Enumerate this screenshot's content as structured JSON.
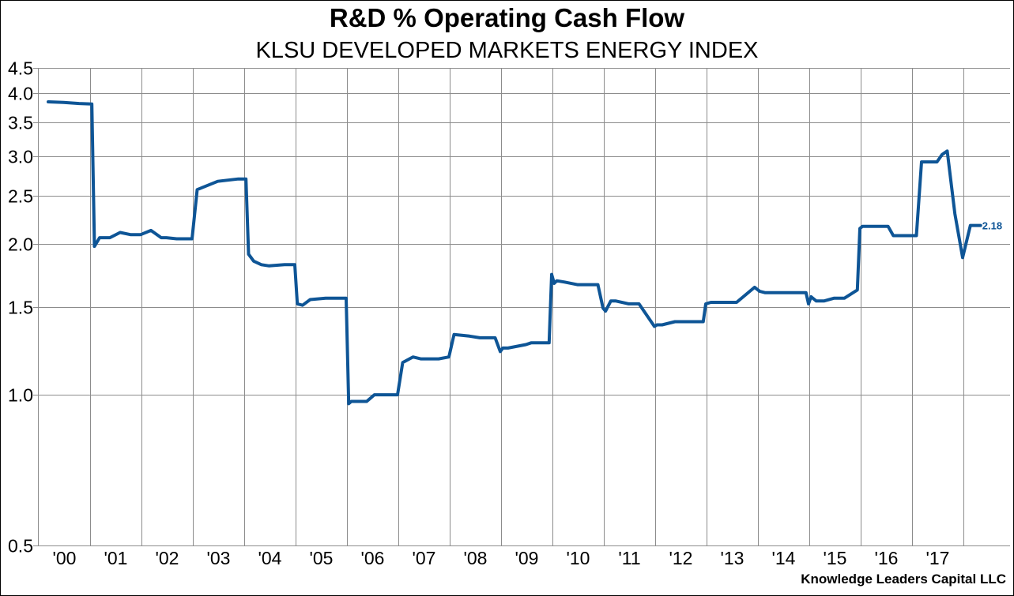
{
  "chart_data": {
    "type": "line",
    "title": "R&D % Operating Cash Flow",
    "subtitle": "KLSU DEVELOPED MARKETS ENERGY INDEX",
    "xlabel": "",
    "ylabel": "",
    "y_scale": "log",
    "ylim": [
      0.5,
      4.5
    ],
    "y_ticks": [
      0.5,
      1.0,
      1.5,
      2.0,
      2.5,
      3.0,
      3.5,
      4.0,
      4.5
    ],
    "y_tick_labels": [
      "0.5",
      "1.0",
      "1.5",
      "2.0",
      "2.5",
      "3.0",
      "3.5",
      "4.0",
      "4.5"
    ],
    "x_range": [
      2000,
      2018.9
    ],
    "x_tick_labels": [
      "'00",
      "'01",
      "'02",
      "'03",
      "'04",
      "'05",
      "'06",
      "'07",
      "'08",
      "'09",
      "'10",
      "'11",
      "'12",
      "'13",
      "'14",
      "'15",
      "'16",
      "'17"
    ],
    "grid": true,
    "legend": "none",
    "line_color": "#0e5596",
    "series": [
      {
        "name": "R&D % Operating Cash Flow",
        "x": [
          2000.2,
          2000.5,
          2000.8,
          2001.05,
          2001.1,
          2001.2,
          2001.4,
          2001.6,
          2001.8,
          2002.0,
          2002.2,
          2002.4,
          2002.5,
          2002.7,
          2003.0,
          2003.1,
          2003.5,
          2003.9,
          2004.05,
          2004.1,
          2004.2,
          2004.35,
          2004.5,
          2004.8,
          2005.0,
          2005.05,
          2005.15,
          2005.3,
          2005.6,
          2005.9,
          2006.0,
          2006.05,
          2006.1,
          2006.4,
          2006.55,
          2006.9,
          2007.0,
          2007.1,
          2007.3,
          2007.45,
          2007.8,
          2008.0,
          2008.1,
          2008.4,
          2008.6,
          2008.9,
          2009.0,
          2009.05,
          2009.15,
          2009.5,
          2009.6,
          2009.95,
          2010.0,
          2010.05,
          2010.1,
          2010.25,
          2010.5,
          2010.9,
          2011.0,
          2011.05,
          2011.15,
          2011.25,
          2011.5,
          2011.7,
          2012.0,
          2012.05,
          2012.15,
          2012.4,
          2012.6,
          2012.95,
          2013.0,
          2013.1,
          2013.3,
          2013.6,
          2013.95,
          2014.05,
          2014.15,
          2014.5,
          2014.95,
          2015.0,
          2015.05,
          2015.15,
          2015.3,
          2015.5,
          2015.7,
          2015.95,
          2016.0,
          2016.05,
          2016.55,
          2016.65,
          2017.0,
          2017.1,
          2017.2,
          2017.5,
          2017.6,
          2017.7,
          2017.85,
          2018.0,
          2018.15,
          2018.25,
          2018.35
        ],
        "values": [
          3.85,
          3.84,
          3.82,
          3.81,
          1.98,
          2.06,
          2.06,
          2.11,
          2.09,
          2.09,
          2.13,
          2.06,
          2.06,
          2.05,
          2.05,
          2.57,
          2.67,
          2.7,
          2.7,
          1.91,
          1.85,
          1.82,
          1.81,
          1.82,
          1.82,
          1.52,
          1.51,
          1.55,
          1.56,
          1.56,
          1.56,
          0.96,
          0.97,
          0.97,
          1.0,
          1.0,
          1.0,
          1.16,
          1.19,
          1.18,
          1.18,
          1.19,
          1.32,
          1.31,
          1.3,
          1.3,
          1.22,
          1.24,
          1.24,
          1.26,
          1.27,
          1.27,
          1.74,
          1.67,
          1.69,
          1.68,
          1.66,
          1.66,
          1.49,
          1.47,
          1.54,
          1.54,
          1.52,
          1.52,
          1.37,
          1.38,
          1.38,
          1.4,
          1.4,
          1.4,
          1.52,
          1.53,
          1.53,
          1.53,
          1.64,
          1.61,
          1.6,
          1.6,
          1.6,
          1.52,
          1.57,
          1.54,
          1.54,
          1.56,
          1.56,
          1.62,
          2.15,
          2.17,
          2.17,
          2.08,
          2.08,
          2.08,
          2.92,
          2.92,
          3.02,
          3.07,
          2.3,
          1.88,
          2.18,
          2.18,
          2.18
        ],
        "last_value_label": "2.18"
      }
    ]
  },
  "credit": "Knowledge Leaders Capital LLC"
}
